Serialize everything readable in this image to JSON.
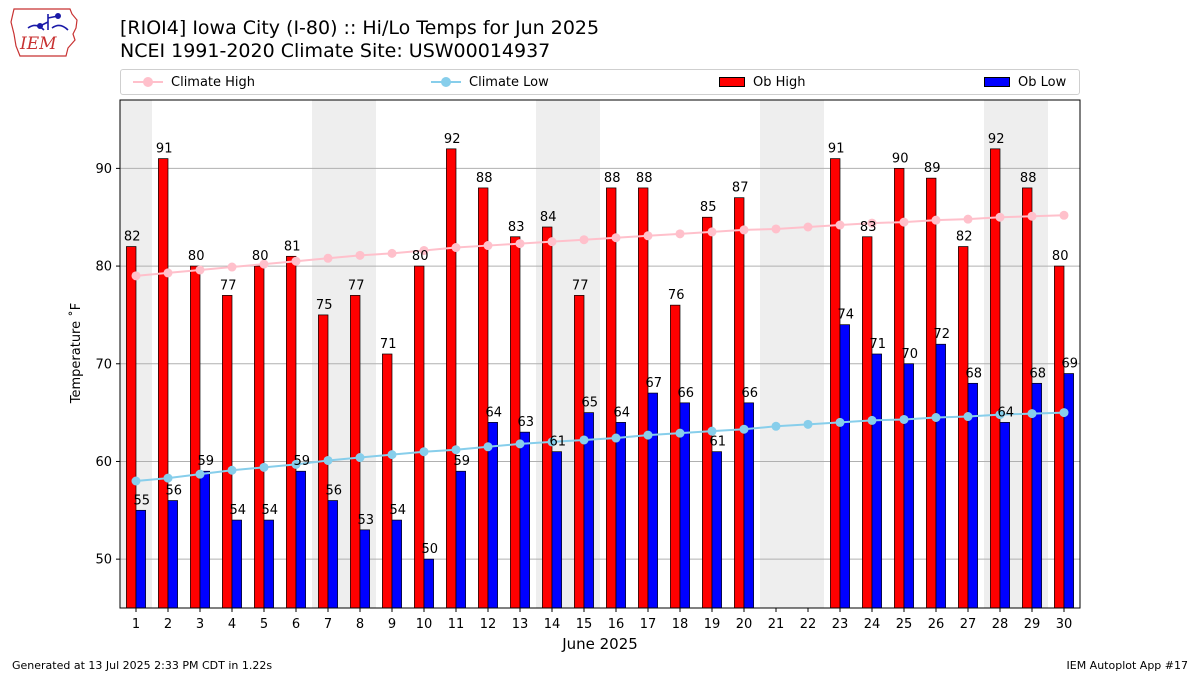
{
  "header": {
    "title": "[RIOI4] Iowa City (I-80) :: Hi/Lo Temps for Jun 2025",
    "subtitle": "NCEI 1991-2020 Climate Site: USW00014937",
    "logo_text": "IEM"
  },
  "legend": [
    {
      "label": "Climate High",
      "kind": "line",
      "color": "#FFC0CB"
    },
    {
      "label": "Climate Low",
      "kind": "line",
      "color": "#87CEEB"
    },
    {
      "label": "Ob High",
      "kind": "bar",
      "color": "#FF0000"
    },
    {
      "label": "Ob Low",
      "kind": "bar",
      "color": "#0000FF"
    }
  ],
  "chart_data": {
    "type": "bar",
    "title": "[RIOI4] Iowa City (I-80) :: Hi/Lo Temps for Jun 2025",
    "xlabel": "June 2025",
    "ylabel": "Temperature ˚F",
    "ylim": [
      45,
      97
    ],
    "yticks": [
      50,
      60,
      70,
      80,
      90
    ],
    "grid": "horizontal",
    "legend_position": "top",
    "categories": [
      "1",
      "2",
      "3",
      "4",
      "5",
      "6",
      "7",
      "8",
      "9",
      "10",
      "11",
      "12",
      "13",
      "14",
      "15",
      "16",
      "17",
      "18",
      "19",
      "20",
      "21",
      "22",
      "23",
      "24",
      "25",
      "26",
      "27",
      "28",
      "29",
      "30"
    ],
    "weekend_shaded_days": [
      1,
      7,
      8,
      14,
      15,
      21,
      22,
      28,
      29
    ],
    "series": [
      {
        "name": "Ob High",
        "type": "bar",
        "color": "#FF0000",
        "values": [
          82,
          91,
          80,
          77,
          80,
          81,
          75,
          77,
          71,
          80,
          92,
          88,
          83,
          84,
          77,
          88,
          88,
          76,
          85,
          87,
          null,
          null,
          91,
          83,
          90,
          89,
          82,
          92,
          88,
          80
        ]
      },
      {
        "name": "Ob Low",
        "type": "bar",
        "color": "#0000FF",
        "values": [
          55,
          56,
          59,
          54,
          54,
          59,
          56,
          53,
          54,
          50,
          59,
          64,
          63,
          61,
          65,
          64,
          67,
          66,
          61,
          66,
          null,
          null,
          74,
          71,
          70,
          72,
          68,
          64,
          68,
          69
        ]
      },
      {
        "name": "Climate High",
        "type": "line",
        "color": "#FFC0CB",
        "values": [
          79.0,
          79.3,
          79.6,
          79.9,
          80.2,
          80.5,
          80.8,
          81.1,
          81.3,
          81.6,
          81.9,
          82.1,
          82.3,
          82.5,
          82.7,
          82.9,
          83.1,
          83.3,
          83.5,
          83.7,
          83.8,
          84.0,
          84.2,
          84.4,
          84.5,
          84.7,
          84.8,
          85.0,
          85.1,
          85.2
        ]
      },
      {
        "name": "Climate Low",
        "type": "line",
        "color": "#87CEEB",
        "values": [
          58.0,
          58.3,
          58.7,
          59.1,
          59.4,
          59.7,
          60.1,
          60.4,
          60.7,
          61.0,
          61.2,
          61.5,
          61.8,
          62.0,
          62.2,
          62.4,
          62.7,
          62.9,
          63.1,
          63.3,
          63.6,
          63.8,
          64.0,
          64.2,
          64.3,
          64.5,
          64.6,
          64.8,
          64.9,
          65.0
        ]
      }
    ]
  },
  "footer": {
    "generated": "Generated at 13 Jul 2025 2:33 PM CDT in 1.22s",
    "app": "IEM Autoplot App #17"
  }
}
